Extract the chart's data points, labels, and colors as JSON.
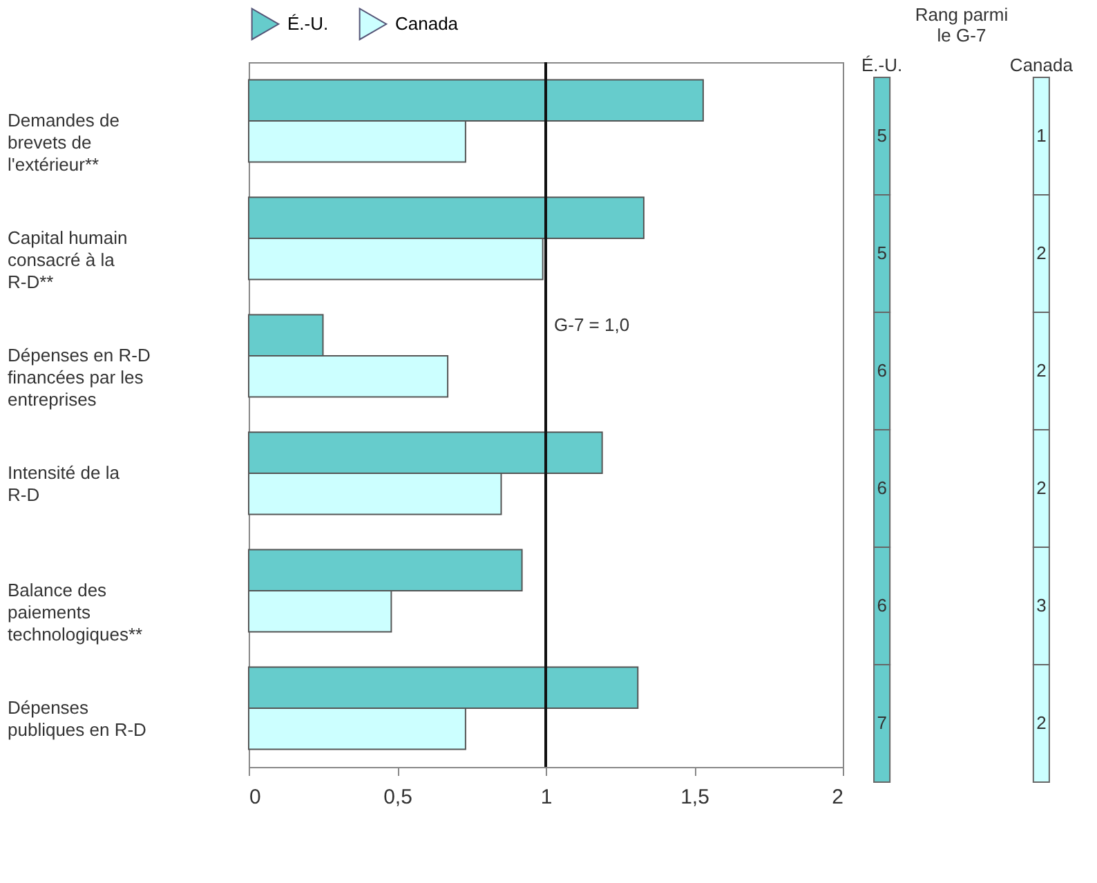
{
  "chart_data": [
    {
      "type": "bar",
      "orientation": "horizontal",
      "categories": [
        "Demandes de brevets de l'extérieur**",
        "Capital humain consacré à la R-D**",
        "Dépenses en R-D financées par les entreprises",
        "Intensité de la R-D",
        "Balance des paiements technologiques**",
        "Dépenses publiques en R-D"
      ],
      "series": [
        {
          "name": "É.-U.",
          "color": "#66cccc",
          "values": [
            1.53,
            1.33,
            0.25,
            1.19,
            0.92,
            1.31
          ]
        },
        {
          "name": "Canada",
          "color": "#ccffff",
          "values": [
            0.73,
            0.99,
            0.67,
            0.85,
            0.48,
            0.73
          ]
        }
      ],
      "xlim": [
        0,
        2
      ],
      "xticks": [
        0,
        {
          "value": 0.5,
          "label": "0,5"
        },
        1,
        {
          "value": 1.5,
          "label": "1,5"
        },
        2
      ],
      "ref_lines": [
        {
          "axis": "x",
          "value": 1,
          "label": "G-7 = 1,0"
        }
      ],
      "legend": "top"
    },
    {
      "type": "heatmap",
      "title": "Rang parmi le G-7",
      "categories": [
        "É.-U.",
        "Canada"
      ],
      "colors": [
        "#66cccc",
        "#ccffff"
      ],
      "y_categories": [
        null,
        null,
        null,
        null,
        null,
        null
      ],
      "data_labels": true,
      "cells": [
        [
          5,
          1
        ],
        [
          5,
          2
        ],
        [
          6,
          2
        ],
        [
          6,
          2
        ],
        [
          6,
          3
        ],
        [
          7,
          2
        ]
      ]
    }
  ]
}
